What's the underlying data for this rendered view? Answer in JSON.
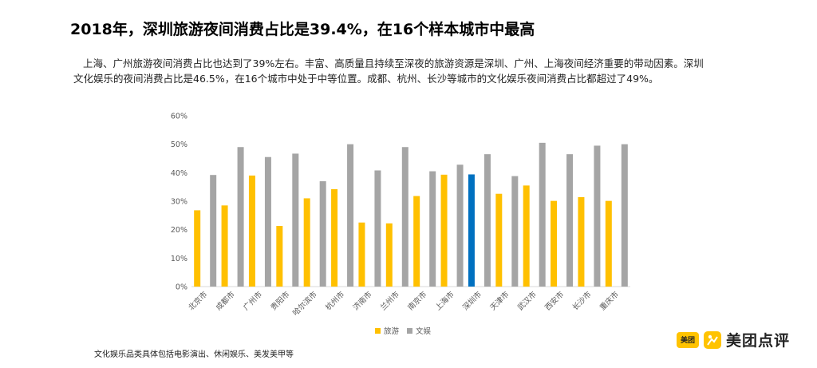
{
  "header": {
    "title": "2018年，深圳旅游夜间消费占比是39.4%，在16个样本城市中最高"
  },
  "description": "上海、广州旅游夜间消费占比也达到了39%左右。丰富、高质量且持续至深夜的旅游资源是深圳、广州、上海夜间经济重要的带动因素。深圳文化娱乐的夜间消费占比是46.5%，在16个城市中处于中等位置。成都、杭州、长沙等城市的文化娱乐夜间消费占比都超过了49%。",
  "footnote": "文化娱乐品类具体包括电影演出、休闲娱乐、美发美甲等",
  "brand": {
    "badge": "美团",
    "name": "美团点评"
  },
  "colors": {
    "tourism": "#FFC000",
    "culture": "#A5A5A5",
    "highlight": "#0070C0",
    "axis": "#D9D9D9",
    "tick_text": "#595959"
  },
  "chart_data": {
    "type": "bar",
    "title": "",
    "xlabel": "",
    "ylabel": "",
    "ylim": [
      0,
      60
    ],
    "yticks": [
      "0%",
      "10%",
      "20%",
      "30%",
      "40%",
      "50%",
      "60%"
    ],
    "grid": false,
    "legend_position": "bottom",
    "highlight_category": "深圳市",
    "categories": [
      "北京市",
      "成都市",
      "广州市",
      "贵阳市",
      "哈尔滨市",
      "杭州市",
      "济南市",
      "兰州市",
      "南京市",
      "上海市",
      "深圳市",
      "天津市",
      "武汉市",
      "西安市",
      "长沙市",
      "重庆市"
    ],
    "series": [
      {
        "name": "旅游",
        "values": [
          26.8,
          28.5,
          39.0,
          21.3,
          31.0,
          34.2,
          22.5,
          22.2,
          31.8,
          39.3,
          39.4,
          32.6,
          35.5,
          30.1,
          31.4,
          30.1
        ]
      },
      {
        "name": "文娱",
        "values": [
          39.2,
          49.0,
          45.5,
          46.7,
          37.0,
          50.0,
          40.8,
          49.0,
          40.5,
          42.8,
          46.5,
          38.8,
          50.5,
          46.5,
          49.5,
          50.0
        ]
      }
    ]
  }
}
